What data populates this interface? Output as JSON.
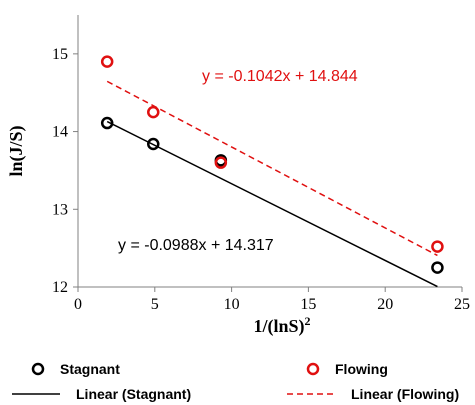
{
  "chart_data": {
    "type": "scatter",
    "xlabel": "1/(lnS)",
    "xlabel_sup": "2",
    "ylabel": "ln(J/S)",
    "xlim": [
      0,
      25
    ],
    "ylim": [
      12,
      15.5
    ],
    "xticks": [
      "0",
      "5",
      "10",
      "15",
      "20",
      "25"
    ],
    "yticks": [
      "12",
      "13",
      "14",
      "15"
    ],
    "grid": false,
    "legend_position": "bottom",
    "series": [
      {
        "name": "Stagnant",
        "color": "#000000",
        "x": [
          1.9,
          4.9,
          9.3,
          23.4
        ],
        "y": [
          14.11,
          13.84,
          13.63,
          12.25
        ]
      },
      {
        "name": "Flowing",
        "color": "#e01010",
        "x": [
          1.9,
          4.9,
          9.3,
          23.4
        ],
        "y": [
          14.9,
          14.25,
          13.6,
          12.52
        ]
      }
    ],
    "trendlines": [
      {
        "name": "Linear (Stagnant)",
        "color": "#000000",
        "style": "solid",
        "slope": -0.0988,
        "intercept": 14.317,
        "x_range": [
          1.9,
          23.4
        ],
        "equation": "y = -0.0988x + 14.317"
      },
      {
        "name": "Linear (Flowing)",
        "color": "#e01010",
        "style": "dashed",
        "slope": -0.1042,
        "intercept": 14.844,
        "x_range": [
          1.9,
          23.4
        ],
        "equation": "y = -0.1042x + 14.844"
      }
    ]
  }
}
